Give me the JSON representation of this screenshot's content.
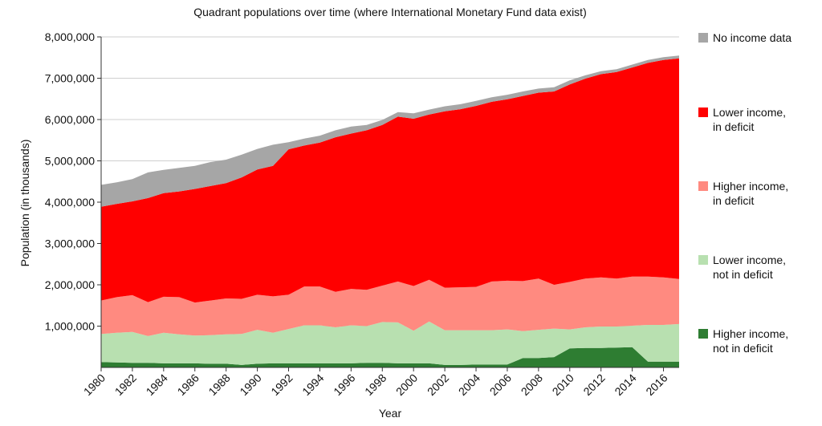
{
  "chart_data": {
    "type": "area",
    "stacked": true,
    "title": "Quadrant populations over time (where International Monetary Fund data exist)",
    "xlabel": "Year",
    "ylabel": "Population (in thousands)",
    "xlim": [
      1980,
      2017
    ],
    "ylim": [
      0,
      8000000
    ],
    "yticks": [
      1000000,
      2000000,
      3000000,
      4000000,
      5000000,
      6000000,
      7000000,
      8000000
    ],
    "ytick_labels": [
      "1,000,000",
      "2,000,000",
      "3,000,000",
      "4,000,000",
      "5,000,000",
      "6,000,000",
      "7,000,000",
      "8,000,000"
    ],
    "xticks": [
      1980,
      1982,
      1984,
      1986,
      1988,
      1990,
      1992,
      1994,
      1996,
      1998,
      2000,
      2002,
      2004,
      2006,
      2008,
      2010,
      2012,
      2014,
      2016
    ],
    "xtick_labels": [
      "1980",
      "1982",
      "1984",
      "1986",
      "1988",
      "1990",
      "1992",
      "1994",
      "1996",
      "1998",
      "2000",
      "2002",
      "2004",
      "2006",
      "2008",
      "2010",
      "2012",
      "2014",
      "2016"
    ],
    "grid": true,
    "legend_position": "right",
    "x": [
      1980,
      1981,
      1982,
      1983,
      1984,
      1985,
      1986,
      1987,
      1988,
      1989,
      1990,
      1991,
      1992,
      1993,
      1994,
      1995,
      1996,
      1997,
      1998,
      1999,
      2000,
      2001,
      2002,
      2003,
      2004,
      2005,
      2006,
      2007,
      2008,
      2009,
      2010,
      2011,
      2012,
      2013,
      2014,
      2015,
      2016,
      2017
    ],
    "series": [
      {
        "name": "Higher income, not in deficit",
        "color": "#2e7d32",
        "values": [
          130000,
          120000,
          110000,
          110000,
          100000,
          100000,
          100000,
          90000,
          90000,
          60000,
          90000,
          100000,
          100000,
          100000,
          100000,
          100000,
          100000,
          110000,
          110000,
          100000,
          100000,
          100000,
          60000,
          60000,
          70000,
          70000,
          70000,
          230000,
          230000,
          250000,
          460000,
          470000,
          470000,
          480000,
          490000,
          140000,
          140000,
          140000
        ]
      },
      {
        "name": "Lower income, not in deficit",
        "color": "#b8e0b0",
        "values": [
          680000,
          720000,
          750000,
          650000,
          740000,
          700000,
          670000,
          690000,
          710000,
          750000,
          820000,
          740000,
          830000,
          920000,
          920000,
          870000,
          920000,
          890000,
          990000,
          990000,
          790000,
          1010000,
          840000,
          840000,
          830000,
          830000,
          850000,
          650000,
          680000,
          690000,
          460000,
          500000,
          520000,
          510000,
          520000,
          890000,
          890000,
          910000
        ]
      },
      {
        "name": "Higher income, in deficit",
        "color": "#ff8a80",
        "values": [
          810000,
          860000,
          890000,
          820000,
          870000,
          900000,
          800000,
          840000,
          870000,
          850000,
          850000,
          880000,
          830000,
          940000,
          940000,
          860000,
          880000,
          880000,
          880000,
          990000,
          1080000,
          1010000,
          1030000,
          1040000,
          1050000,
          1180000,
          1180000,
          1210000,
          1240000,
          1060000,
          1150000,
          1180000,
          1190000,
          1160000,
          1190000,
          1170000,
          1150000,
          1090000
        ]
      },
      {
        "name": "Lower income, in deficit",
        "color": "#ff0000",
        "values": [
          2270000,
          2260000,
          2270000,
          2520000,
          2510000,
          2560000,
          2750000,
          2770000,
          2790000,
          2940000,
          3030000,
          3160000,
          3520000,
          3410000,
          3480000,
          3740000,
          3760000,
          3860000,
          3890000,
          3990000,
          4050000,
          4000000,
          4270000,
          4310000,
          4380000,
          4350000,
          4390000,
          4480000,
          4500000,
          4680000,
          4780000,
          4840000,
          4920000,
          5000000,
          5060000,
          5170000,
          5260000,
          5340000
        ]
      },
      {
        "name": "No income data",
        "color": "#a6a6a6",
        "values": [
          530000,
          520000,
          540000,
          620000,
          560000,
          570000,
          560000,
          580000,
          570000,
          550000,
          500000,
          510000,
          170000,
          170000,
          170000,
          170000,
          170000,
          130000,
          120000,
          110000,
          130000,
          120000,
          120000,
          120000,
          120000,
          110000,
          110000,
          110000,
          100000,
          100000,
          100000,
          80000,
          70000,
          70000,
          70000,
          70000,
          70000,
          70000
        ]
      }
    ]
  },
  "legend": {
    "items": [
      {
        "label_lines": [
          "No income data"
        ],
        "color": "#a6a6a6"
      },
      {
        "label_lines": [
          "Lower income,",
          "in deficit"
        ],
        "color": "#ff0000"
      },
      {
        "label_lines": [
          "Higher income,",
          "in deficit"
        ],
        "color": "#ff8a80"
      },
      {
        "label_lines": [
          "Lower income,",
          "not in deficit"
        ],
        "color": "#b8e0b0"
      },
      {
        "label_lines": [
          "Higher income,",
          "not in deficit"
        ],
        "color": "#2e7d32"
      }
    ]
  }
}
